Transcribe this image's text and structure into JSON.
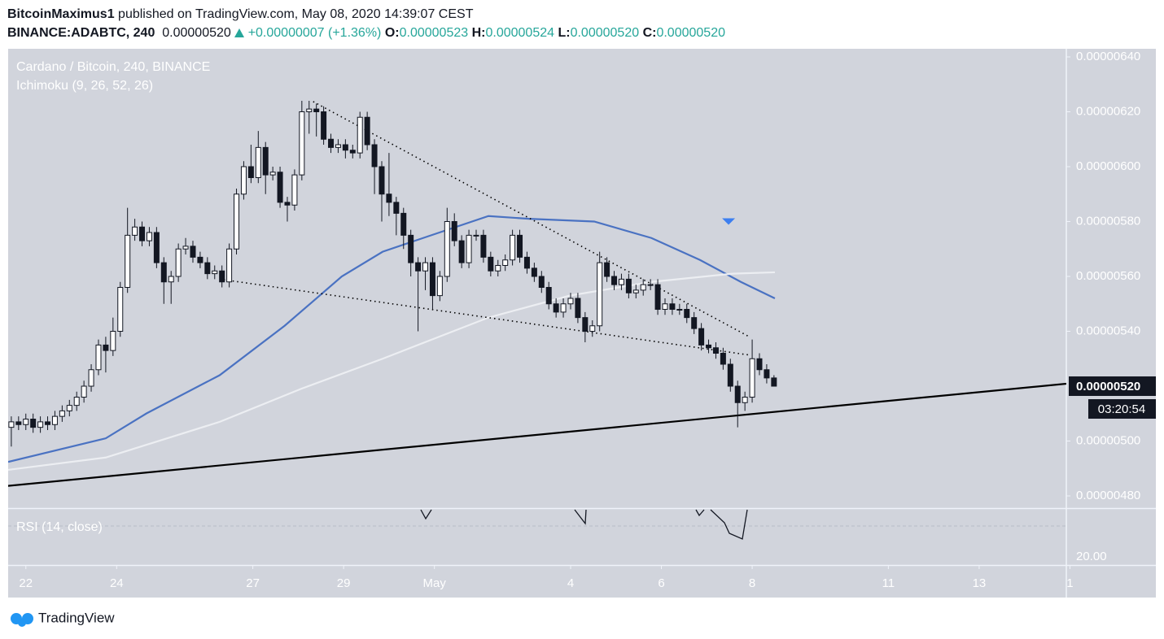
{
  "header": {
    "author": "BitcoinMaximus1",
    "published": "published on TradingView.com, May 08, 2020 14:39:07 CEST",
    "symbol": "BINANCE:ADABTC, 240",
    "last": "0.00000520",
    "change": "+0.00000007 (+1.36%)",
    "o_label": "O:",
    "o": "0.00000523",
    "h_label": "H:",
    "h": "0.00000524",
    "l_label": "L:",
    "l": "0.00000520",
    "c_label": "C:",
    "c": "0.00000520"
  },
  "footer": {
    "logo": "TradingView"
  },
  "chart_data": {
    "type": "candlestick",
    "title": "Cardano / Bitcoin, 240, BINANCE",
    "subtitle": "Ichimoku (9, 26, 52, 26)",
    "rsi_label": "RSI (14, close)",
    "rsi_tick": "20.00",
    "countdown": "03:20:54",
    "price_label": {
      "value": 5.2e-06,
      "label": "0.00000520"
    },
    "up_color": "#ffffff",
    "down_color": "#131722",
    "xlim": [
      -0.39,
      22.92
    ],
    "ylim": [
      4.7556e-06,
      6.4296e-06
    ],
    "xticks": [
      {
        "value": 0,
        "label": "22"
      },
      {
        "value": 2,
        "label": "24"
      },
      {
        "value": 5,
        "label": "27"
      },
      {
        "value": 7,
        "label": "29"
      },
      {
        "value": 9,
        "label": "May"
      },
      {
        "value": 12,
        "label": "4"
      },
      {
        "value": 14,
        "label": "6"
      },
      {
        "value": 16,
        "label": "8"
      },
      {
        "value": 19,
        "label": "11"
      },
      {
        "value": 21,
        "label": "13"
      },
      {
        "value": 23,
        "label": "1"
      }
    ],
    "yticks": [
      {
        "value": 6.4e-06,
        "label": "0.00000640"
      },
      {
        "value": 6.2e-06,
        "label": "0.00000620"
      },
      {
        "value": 6e-06,
        "label": "0.00000600"
      },
      {
        "value": 5.8e-06,
        "label": "0.00000580"
      },
      {
        "value": 5.6e-06,
        "label": "0.00000560"
      },
      {
        "value": 5.4e-06,
        "label": "0.00000540"
      },
      {
        "value": 5e-06,
        "label": "0.00000500"
      },
      {
        "value": 4.8e-06,
        "label": "0.00000480"
      }
    ],
    "x": [
      -0.32,
      -0.16,
      0,
      0.16,
      0.32,
      0.48,
      0.64,
      0.8,
      0.96,
      1.12,
      1.28,
      1.44,
      1.6,
      1.76,
      1.92,
      2.08,
      2.24,
      2.4,
      2.56,
      2.72,
      2.88,
      3.04,
      3.2,
      3.36,
      3.52,
      3.68,
      3.84,
      4,
      4.16,
      4.32,
      4.48,
      4.64,
      4.8,
      4.96,
      5.12,
      5.28,
      5.44,
      5.6,
      5.76,
      5.92,
      6.08,
      6.24,
      6.4,
      6.56,
      6.72,
      6.88,
      7.04,
      7.2,
      7.36,
      7.52,
      7.68,
      7.84,
      8,
      8.16,
      8.32,
      8.48,
      8.64,
      8.8,
      8.96,
      9.12,
      9.28,
      9.44,
      9.6,
      9.76,
      9.92,
      10.08,
      10.24,
      10.4,
      10.56,
      10.72,
      10.88,
      11.04,
      11.2,
      11.36,
      11.52,
      11.68,
      11.84,
      12,
      12.16,
      12.32,
      12.48,
      12.64,
      12.8,
      12.96,
      13.12,
      13.28,
      13.44,
      13.6,
      13.76,
      13.92,
      14.08,
      14.24,
      14.4,
      14.56,
      14.72,
      14.88,
      15.04,
      15.2,
      15.36,
      15.52,
      15.68,
      15.84,
      16,
      16.16,
      16.32,
      16.48
    ],
    "open": [
      5.05e-06,
      5.07e-06,
      5.06e-06,
      5.08e-06,
      5.05e-06,
      5.07e-06,
      5.06e-06,
      5.09e-06,
      5.11e-06,
      5.13e-06,
      5.16e-06,
      5.2e-06,
      5.26e-06,
      5.35e-06,
      5.33e-06,
      5.4e-06,
      5.56e-06,
      5.75e-06,
      5.78e-06,
      5.73e-06,
      5.76e-06,
      5.65e-06,
      5.58e-06,
      5.6e-06,
      5.7e-06,
      5.71e-06,
      5.67e-06,
      5.65e-06,
      5.61e-06,
      5.62e-06,
      5.58e-06,
      5.7e-06,
      5.9e-06,
      6e-06,
      5.96e-06,
      6.07e-06,
      5.97e-06,
      5.98e-06,
      5.87e-06,
      5.86e-06,
      5.97e-06,
      6.2e-06,
      6.21e-06,
      6.2e-06,
      6.1e-06,
      6.07e-06,
      6.08e-06,
      6.06e-06,
      6.05e-06,
      6.18e-06,
      6.08e-06,
      6e-06,
      5.9e-06,
      5.87e-06,
      5.83e-06,
      5.75e-06,
      5.65e-06,
      5.62e-06,
      5.65e-06,
      5.53e-06,
      5.6e-06,
      5.8e-06,
      5.73e-06,
      5.65e-06,
      5.75e-06,
      5.75e-06,
      5.67e-06,
      5.62e-06,
      5.64e-06,
      5.66e-06,
      5.75e-06,
      5.67e-06,
      5.63e-06,
      5.6e-06,
      5.56e-06,
      5.5e-06,
      5.47e-06,
      5.5e-06,
      5.52e-06,
      5.45e-06,
      5.4e-06,
      5.42e-06,
      5.65e-06,
      5.6e-06,
      5.57e-06,
      5.59e-06,
      5.54e-06,
      5.55e-06,
      5.57e-06,
      5.57e-06,
      5.48e-06,
      5.5e-06,
      5.48e-06,
      5.48e-06,
      5.45e-06,
      5.41e-06,
      5.35e-06,
      5.34e-06,
      5.32e-06,
      5.28e-06,
      5.2e-06,
      5.14e-06,
      5.16e-06,
      5.3e-06,
      5.26e-06,
      5.23e-06
    ],
    "high": [
      5.09e-06,
      5.09e-06,
      5.1e-06,
      5.1e-06,
      5.09e-06,
      5.09e-06,
      5.11e-06,
      5.13e-06,
      5.15e-06,
      5.18e-06,
      5.22e-06,
      5.28e-06,
      5.37e-06,
      5.38e-06,
      5.45e-06,
      5.58e-06,
      5.85e-06,
      5.81e-06,
      5.8e-06,
      5.78e-06,
      5.78e-06,
      5.67e-06,
      5.62e-06,
      5.72e-06,
      5.74e-06,
      5.73e-06,
      5.69e-06,
      5.67e-06,
      5.64e-06,
      5.64e-06,
      5.72e-06,
      5.92e-06,
      6.02e-06,
      6.08e-06,
      6.13e-06,
      6.09e-06,
      6e-06,
      6e-06,
      5.89e-06,
      5.99e-06,
      6.24e-06,
      6.24e-06,
      6.23e-06,
      6.22e-06,
      6.12e-06,
      6.1e-06,
      6.1e-06,
      6.08e-06,
      6.2e-06,
      6.2e-06,
      6.1e-06,
      6.02e-06,
      6.05e-06,
      5.89e-06,
      5.85e-06,
      5.77e-06,
      5.67e-06,
      5.67e-06,
      5.67e-06,
      5.62e-06,
      5.85e-06,
      5.83e-06,
      5.75e-06,
      5.77e-06,
      5.77e-06,
      5.77e-06,
      5.69e-06,
      5.66e-06,
      5.68e-06,
      5.77e-06,
      5.77e-06,
      5.69e-06,
      5.65e-06,
      5.62e-06,
      5.58e-06,
      5.52e-06,
      5.52e-06,
      5.54e-06,
      5.54e-06,
      5.47e-06,
      5.44e-06,
      5.69e-06,
      5.67e-06,
      5.62e-06,
      5.61e-06,
      5.61e-06,
      5.57e-06,
      5.59e-06,
      5.59e-06,
      5.59e-06,
      5.52e-06,
      5.52e-06,
      5.5e-06,
      5.5e-06,
      5.47e-06,
      5.43e-06,
      5.37e-06,
      5.36e-06,
      5.34e-06,
      5.3e-06,
      5.22e-06,
      5.18e-06,
      5.37e-06,
      5.32e-06,
      5.28e-06,
      5.24e-06
    ],
    "low": [
      4.98e-06,
      5.04e-06,
      5.04e-06,
      5.03e-06,
      5.03e-06,
      5.04e-06,
      5.04e-06,
      5.07e-06,
      5.09e-06,
      5.11e-06,
      5.14e-06,
      5.18e-06,
      5.24e-06,
      5.25e-06,
      5.31e-06,
      5.38e-06,
      5.54e-06,
      5.73e-06,
      5.71e-06,
      5.71e-06,
      5.63e-06,
      5.5e-06,
      5.5e-06,
      5.58e-06,
      5.68e-06,
      5.65e-06,
      5.63e-06,
      5.59e-06,
      5.59e-06,
      5.56e-06,
      5.56e-06,
      5.68e-06,
      5.88e-06,
      5.94e-06,
      5.94e-06,
      5.9e-06,
      5.95e-06,
      5.85e-06,
      5.8e-06,
      5.84e-06,
      5.95e-06,
      6.12e-06,
      6.11e-06,
      6.08e-06,
      6.05e-06,
      6.05e-06,
      6.03e-06,
      6.03e-06,
      6.03e-06,
      6.06e-06,
      5.9e-06,
      5.8e-06,
      5.82e-06,
      5.75e-06,
      5.7e-06,
      5.6e-06,
      5.4e-06,
      5.55e-06,
      5.48e-06,
      5.51e-06,
      5.58e-06,
      5.71e-06,
      5.63e-06,
      5.63e-06,
      5.73e-06,
      5.65e-06,
      5.6e-06,
      5.6e-06,
      5.62e-06,
      5.64e-06,
      5.65e-06,
      5.61e-06,
      5.58e-06,
      5.54e-06,
      5.48e-06,
      5.45e-06,
      5.45e-06,
      5.48e-06,
      5.43e-06,
      5.36e-06,
      5.38e-06,
      5.4e-06,
      5.58e-06,
      5.55e-06,
      5.55e-06,
      5.52e-06,
      5.52e-06,
      5.53e-06,
      5.55e-06,
      5.46e-06,
      5.46e-06,
      5.46e-06,
      5.46e-06,
      5.43e-06,
      5.39e-06,
      5.33e-06,
      5.32e-06,
      5.3e-06,
      5.26e-06,
      5.18e-06,
      5.05e-06,
      5.11e-06,
      5.14e-06,
      5.24e-06,
      5.21e-06,
      5.2e-06
    ],
    "close": [
      5.07e-06,
      5.06e-06,
      5.08e-06,
      5.05e-06,
      5.07e-06,
      5.06e-06,
      5.09e-06,
      5.11e-06,
      5.13e-06,
      5.16e-06,
      5.2e-06,
      5.26e-06,
      5.35e-06,
      5.33e-06,
      5.4e-06,
      5.56e-06,
      5.75e-06,
      5.78e-06,
      5.73e-06,
      5.76e-06,
      5.65e-06,
      5.58e-06,
      5.6e-06,
      5.7e-06,
      5.71e-06,
      5.67e-06,
      5.65e-06,
      5.61e-06,
      5.62e-06,
      5.58e-06,
      5.7e-06,
      5.9e-06,
      6e-06,
      5.96e-06,
      6.07e-06,
      5.97e-06,
      5.98e-06,
      5.87e-06,
      5.86e-06,
      5.97e-06,
      6.2e-06,
      6.21e-06,
      6.2e-06,
      6.1e-06,
      6.07e-06,
      6.08e-06,
      6.06e-06,
      6.05e-06,
      6.18e-06,
      6.08e-06,
      6e-06,
      5.9e-06,
      5.87e-06,
      5.83e-06,
      5.75e-06,
      5.65e-06,
      5.62e-06,
      5.65e-06,
      5.53e-06,
      5.6e-06,
      5.8e-06,
      5.73e-06,
      5.65e-06,
      5.75e-06,
      5.75e-06,
      5.67e-06,
      5.62e-06,
      5.64e-06,
      5.66e-06,
      5.75e-06,
      5.67e-06,
      5.63e-06,
      5.6e-06,
      5.56e-06,
      5.5e-06,
      5.47e-06,
      5.5e-06,
      5.52e-06,
      5.45e-06,
      5.4e-06,
      5.42e-06,
      5.65e-06,
      5.6e-06,
      5.57e-06,
      5.59e-06,
      5.54e-06,
      5.55e-06,
      5.57e-06,
      5.57e-06,
      5.48e-06,
      5.5e-06,
      5.48e-06,
      5.48e-06,
      5.45e-06,
      5.41e-06,
      5.35e-06,
      5.34e-06,
      5.32e-06,
      5.28e-06,
      5.2e-06,
      5.14e-06,
      5.16e-06,
      5.3e-06,
      5.26e-06,
      5.23e-06,
      5.2e-06
    ],
    "overlays": [
      {
        "color": "#4a72c2",
        "style": "solid",
        "x": [
          -0.39,
          1.76,
          2.65,
          4.27,
          5.7,
          6.96,
          7.86,
          8.93,
          10.19,
          11.08,
          12.52,
          13.78,
          14.85,
          15.75,
          16.5
        ],
        "values": [
          4.924e-06,
          5.01e-06,
          5.1e-06,
          5.24e-06,
          5.42e-06,
          5.6e-06,
          5.69e-06,
          5.75e-06,
          5.82e-06,
          5.81e-06,
          5.8e-06,
          5.74e-06,
          5.66e-06,
          5.58e-06,
          5.52e-06
        ]
      },
      {
        "color": "#eceef2",
        "style": "solid",
        "x": [
          -0.39,
          1.76,
          4.27,
          6.06,
          7.86,
          10.19,
          11.98,
          13.78,
          15.57,
          16.5
        ],
        "values": [
          4.895e-06,
          4.94e-06,
          5.07e-06,
          5.19e-06,
          5.3e-06,
          5.45e-06,
          5.53e-06,
          5.58e-06,
          5.61e-06,
          5.615e-06
        ]
      },
      {
        "color": "#000000",
        "style": "solid",
        "x": [
          -0.43,
          22.92
        ],
        "values": [
          4.836e-06,
          5.209e-06
        ]
      },
      {
        "color": "#000000",
        "style": "dotted",
        "x": [
          6.33,
          15.96
        ],
        "values": [
          6.237e-06,
          5.378e-06
        ]
      },
      {
        "color": "#000000",
        "style": "dotted",
        "x": [
          4.36,
          15.96
        ],
        "values": [
          5.588e-06,
          5.313e-06
        ]
      }
    ],
    "marker": {
      "color": "#3d7ff0",
      "x": 15.48,
      "value": 5.8e-06
    }
  }
}
